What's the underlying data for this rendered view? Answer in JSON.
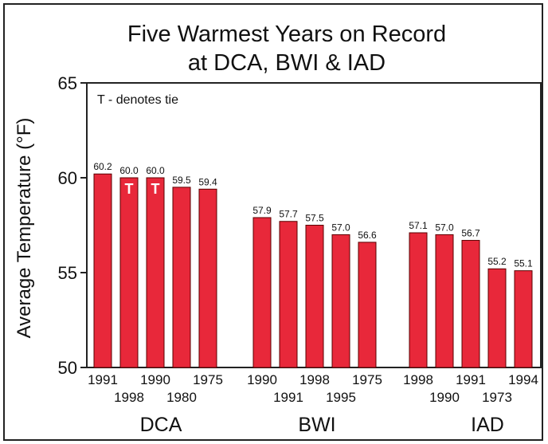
{
  "chart_data": {
    "type": "bar",
    "title_lines": [
      "Five Warmest Years on Record",
      "at DCA, BWI & IAD"
    ],
    "ylabel": "Average Temperature (°F)",
    "ylim": [
      50,
      65
    ],
    "yticks": [
      50,
      55,
      60,
      65
    ],
    "annotation": "T - denotes tie",
    "tie_marker": "T",
    "grid": false,
    "bar_color": "#e8283a",
    "groups": [
      {
        "name": "DCA",
        "bars": [
          {
            "year": "1991",
            "value": 60.2,
            "label": "60.2",
            "tie": false
          },
          {
            "year": "1998",
            "value": 60.0,
            "label": "60.0",
            "tie": true
          },
          {
            "year": "1990",
            "value": 60.0,
            "label": "60.0",
            "tie": true
          },
          {
            "year": "1980",
            "value": 59.5,
            "label": "59.5",
            "tie": false
          },
          {
            "year": "1975",
            "value": 59.4,
            "label": "59.4",
            "tie": false
          }
        ]
      },
      {
        "name": "BWI",
        "bars": [
          {
            "year": "1990",
            "value": 57.9,
            "label": "57.9",
            "tie": false
          },
          {
            "year": "1991",
            "value": 57.7,
            "label": "57.7",
            "tie": false
          },
          {
            "year": "1998",
            "value": 57.5,
            "label": "57.5",
            "tie": false
          },
          {
            "year": "1995",
            "value": 57.0,
            "label": "57.0",
            "tie": false
          },
          {
            "year": "1975",
            "value": 56.6,
            "label": "56.6",
            "tie": false
          }
        ]
      },
      {
        "name": "IAD",
        "bars": [
          {
            "year": "1998",
            "value": 57.1,
            "label": "57.1",
            "tie": false
          },
          {
            "year": "1990",
            "value": 57.0,
            "label": "57.0",
            "tie": false
          },
          {
            "year": "1991",
            "value": 56.7,
            "label": "56.7",
            "tie": false
          },
          {
            "year": "1973",
            "value": 55.2,
            "label": "55.2",
            "tie": false
          },
          {
            "year": "1994",
            "value": 55.1,
            "label": "55.1",
            "tie": false
          }
        ]
      }
    ]
  }
}
